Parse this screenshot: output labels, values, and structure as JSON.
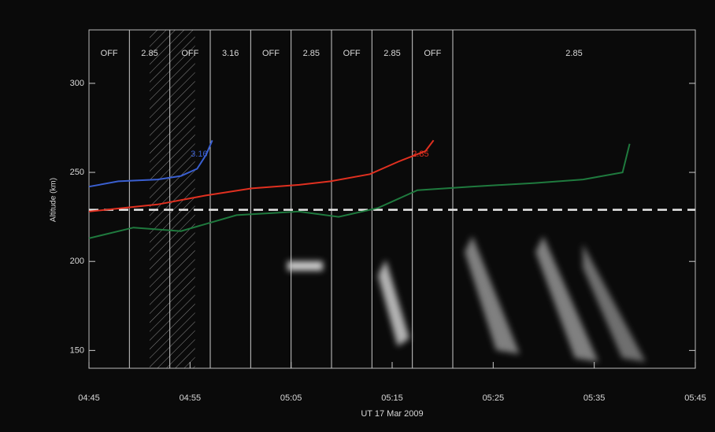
{
  "chart_data": {
    "type": "line",
    "x_label": "UT 17 Mar 2009",
    "y_label": "Altitude (km)",
    "xlim": [
      285,
      345
    ],
    "xticks": [
      {
        "value": 285,
        "label": "04:45"
      },
      {
        "value": 295,
        "label": "04:55"
      },
      {
        "value": 305,
        "label": "05:05"
      },
      {
        "value": 315,
        "label": "05:15"
      },
      {
        "value": 325,
        "label": "05:25"
      },
      {
        "value": 335,
        "label": "05:35"
      },
      {
        "value": 345,
        "label": "05:45"
      }
    ],
    "ylim": [
      140,
      330
    ],
    "yticks": [
      150,
      200,
      250,
      300
    ],
    "period_boundaries": [
      285,
      289,
      293,
      297,
      301,
      305,
      309,
      313,
      317,
      321,
      345
    ],
    "period_labels": [
      "OFF",
      "2.85",
      "OFF",
      "3.16",
      "OFF",
      "2.85",
      "OFF",
      "2.85",
      "OFF",
      "2.85"
    ],
    "hatched_interval": [
      291,
      295.5
    ],
    "reference_altitude": 229,
    "series": [
      {
        "name": "3.16",
        "color": "#3a5fd0",
        "x": [
          285,
          287.9,
          291.8,
          294.1,
          295.7,
          296.6,
          297.2
        ],
        "values": [
          242,
          245,
          246,
          248,
          252,
          260,
          268
        ]
      },
      {
        "name": "2.85",
        "color": "#e03020",
        "x": [
          285,
          291.8,
          296.5,
          301.1,
          305.8,
          308.9,
          312.8,
          315.6,
          318.3,
          319.1
        ],
        "values": [
          228,
          232,
          237,
          241,
          243,
          245,
          249,
          256,
          262,
          268
        ]
      },
      {
        "color": "#1f7a3e",
        "x": [
          285,
          289.4,
          294.1,
          299.6,
          305.8,
          309.7,
          313.6,
          317.5,
          322.8,
          329.1,
          333.9,
          337.8,
          338.5
        ],
        "values": [
          213,
          219,
          217,
          226,
          228,
          225,
          230,
          240,
          242,
          244,
          246,
          250,
          266
        ]
      }
    ]
  }
}
